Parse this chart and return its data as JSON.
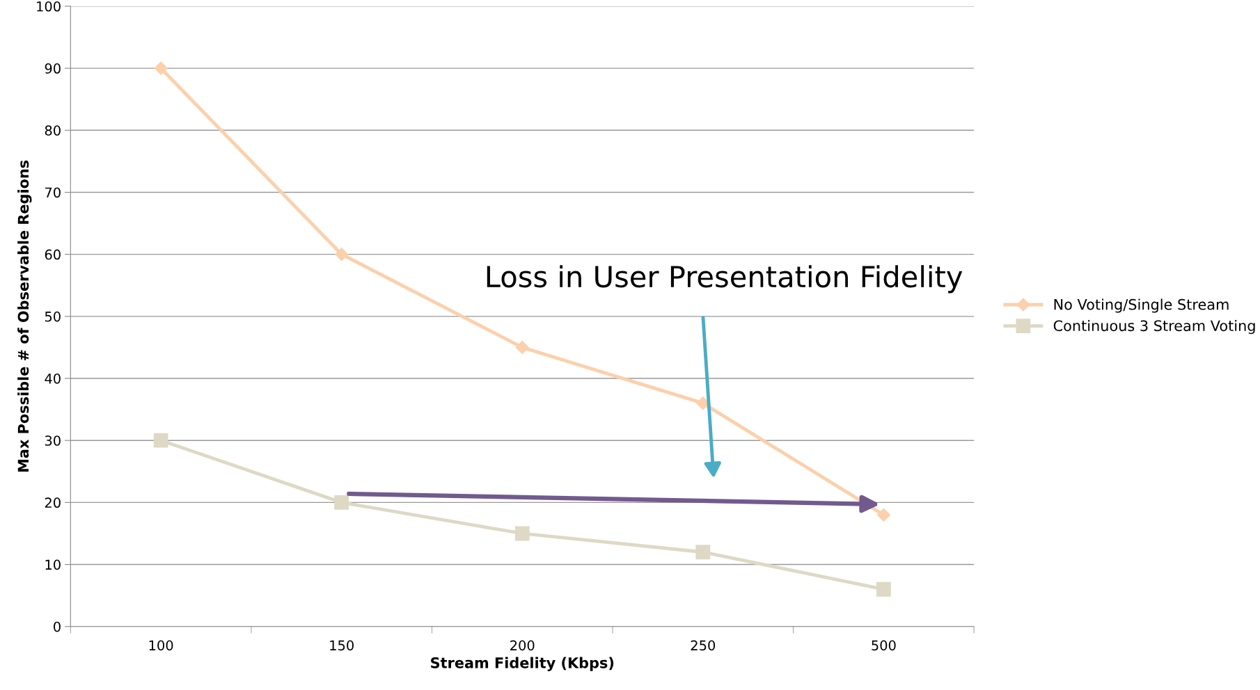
{
  "chart_data": {
    "type": "line",
    "xlabel": "Stream Fidelity (Kbps)",
    "ylabel": "Max Possible # of Observable Regions",
    "categories": [
      "100",
      "150",
      "200",
      "250",
      "500"
    ],
    "series": [
      {
        "name": "No Voting/Single Stream",
        "color": "#fbd0ab",
        "marker": "diamond",
        "values": [
          90,
          60,
          45,
          36,
          18
        ]
      },
      {
        "name": "Continuous 3 Stream Voting",
        "color": "#ddd9c4",
        "marker": "square",
        "values": [
          30,
          20,
          15,
          12,
          6
        ]
      }
    ],
    "ylim": [
      0,
      100
    ],
    "yticks": [
      0,
      10,
      20,
      30,
      40,
      50,
      60,
      70,
      80,
      90,
      100
    ],
    "grid": "y",
    "legend": "right",
    "annotations": [
      "Loss in User Presentation Fidelity"
    ]
  }
}
